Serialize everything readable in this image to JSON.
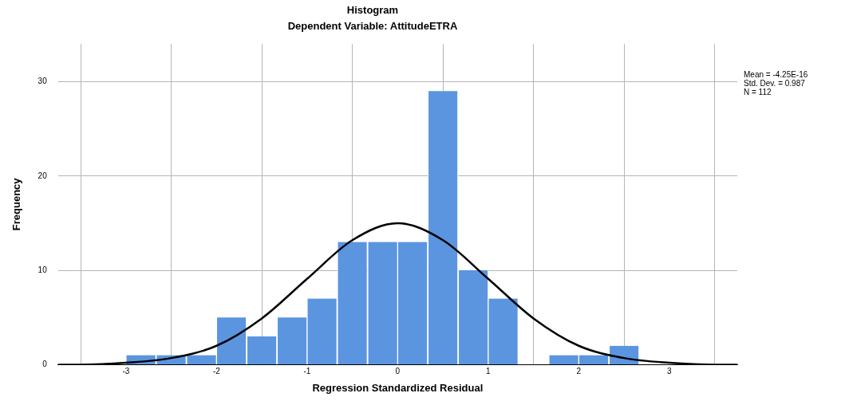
{
  "chart_data": {
    "type": "histogram",
    "title": "Histogram",
    "subtitle": "Dependent Variable: AttitudeETRA",
    "xlabel": "Regression Standardized Residual",
    "ylabel": "Frequency",
    "bins": [
      -3,
      -2.67,
      -2.33,
      -2,
      -1.67,
      -1.33,
      -1,
      -0.67,
      -0.33,
      0,
      0.33,
      0.67,
      1,
      1.33,
      1.67,
      2,
      2.33,
      2.67
    ],
    "values": [
      1,
      1,
      1,
      5,
      3,
      5,
      7,
      13,
      13,
      13,
      29,
      10,
      7,
      0,
      1,
      1,
      2
    ],
    "color": "#5b95e0",
    "series": [
      {
        "type": "line",
        "color": "#000000",
        "marker": "none",
        "x": [
          -3.75,
          -3.5,
          -3,
          -2.5,
          -2,
          -1.5,
          -1,
          -0.5,
          0,
          0.5,
          1,
          1.5,
          2,
          2.5,
          3,
          3.5,
          3.75
        ],
        "values": [
          0,
          0,
          0.2,
          0.7,
          2,
          4.9,
          9.1,
          13.2,
          15,
          13.2,
          9.1,
          4.9,
          2,
          0.7,
          0.2,
          0,
          0
        ]
      }
    ],
    "xlim": [
      -3.75,
      3.75
    ],
    "xticks": [
      -3,
      -2,
      -1,
      0,
      1,
      2,
      3
    ],
    "ylim": [
      0,
      34
    ],
    "yticks": [
      0,
      10,
      20,
      30
    ],
    "grid": true,
    "legend": false,
    "annotations": [
      "Mean = -4.25E-16\nStd. Dev. = 0.987\nN = 112"
    ]
  }
}
